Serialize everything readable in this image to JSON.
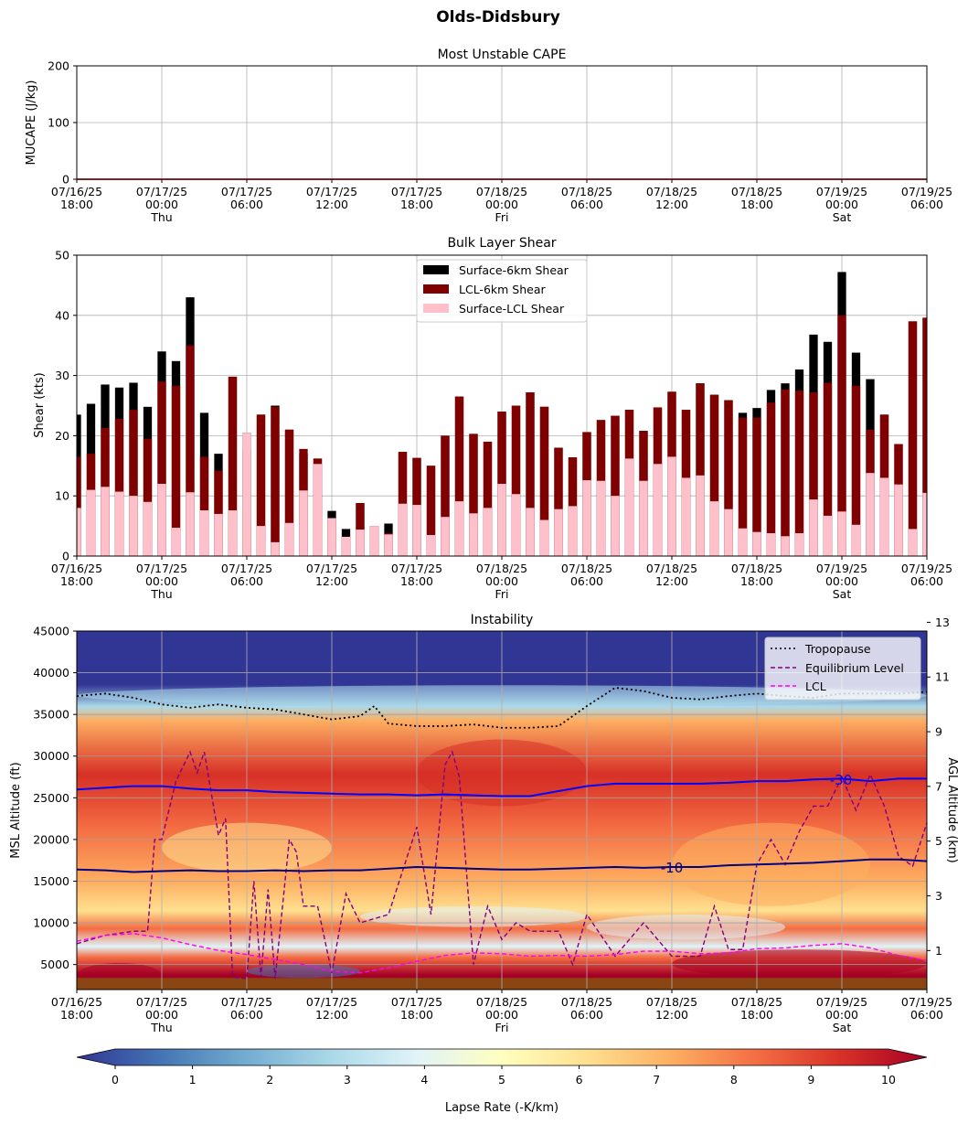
{
  "figure": {
    "title": "Olds-Didsbury"
  },
  "time_axis": {
    "ticks": [
      {
        "date": "07/16/25",
        "time": "18:00",
        "day": ""
      },
      {
        "date": "07/17/25",
        "time": "00:00",
        "day": "Thu"
      },
      {
        "date": "07/17/25",
        "time": "06:00",
        "day": ""
      },
      {
        "date": "07/17/25",
        "time": "12:00",
        "day": ""
      },
      {
        "date": "07/17/25",
        "time": "18:00",
        "day": ""
      },
      {
        "date": "07/18/25",
        "time": "00:00",
        "day": "Fri"
      },
      {
        "date": "07/18/25",
        "time": "06:00",
        "day": ""
      },
      {
        "date": "07/18/25",
        "time": "12:00",
        "day": ""
      },
      {
        "date": "07/18/25",
        "time": "18:00",
        "day": ""
      },
      {
        "date": "07/19/25",
        "time": "00:00",
        "day": "Sat"
      },
      {
        "date": "07/19/25",
        "time": "06:00",
        "day": ""
      }
    ]
  },
  "chart_data": [
    {
      "type": "line",
      "title": "Most Unstable CAPE",
      "xlabel": "",
      "ylabel": "MUCAPE (J/kg)",
      "xlim": [
        "07/16/25 18:00",
        "07/19/25 06:00"
      ],
      "ylim": [
        0,
        200
      ],
      "yticks": [
        0,
        100,
        200
      ],
      "grid": true,
      "series": [
        {
          "color": "#ee1111",
          "x": [
            "07/16/25 18:00",
            "07/17/25 00:00",
            "07/17/25 01:00",
            "07/17/25 02:00",
            "07/17/25 03:00",
            "07/17/25 04:00",
            "07/17/25 05:00",
            "07/17/25 06:00",
            "07/17/25 07:00",
            "07/17/25 08:00",
            "07/17/25 09:00",
            "07/17/25 10:00",
            "07/17/25 11:00",
            "07/17/25 12:00",
            "07/17/25 13:00",
            "07/17/25 14:00",
            "07/17/25 15:00",
            "07/17/25 16:00",
            "07/17/25 17:00",
            "07/17/25 18:00",
            "07/17/25 19:00",
            "07/17/25 20:00",
            "07/17/25 21:00",
            "07/17/25 22:00",
            "07/17/25 23:00",
            "07/18/25 00:00",
            "07/18/25 01:00",
            "07/18/25 02:00",
            "07/18/25 03:00",
            "07/18/25 04:00",
            "07/18/25 05:00",
            "07/18/25 06:00",
            "07/18/25 12:00",
            "07/18/25 18:00",
            "07/18/25 19:00",
            "07/18/25 20:00",
            "07/18/25 21:00",
            "07/18/25 22:00",
            "07/18/25 23:00",
            "07/19/25 00:00",
            "07/19/25 01:00",
            "07/19/25 02:00",
            "07/19/25 03:00",
            "07/19/25 04:00",
            "07/19/25 05:00",
            "07/19/25 06:00"
          ],
          "values": [
            0,
            0,
            0,
            0,
            0,
            0,
            0,
            0,
            0,
            0,
            0,
            0,
            0,
            0,
            0,
            0,
            0,
            0,
            0,
            0,
            0,
            0,
            0,
            0,
            0,
            0,
            0,
            0,
            0,
            0,
            0,
            0,
            0,
            0,
            0,
            0,
            0,
            0,
            0,
            0,
            0,
            0,
            0,
            0,
            0,
            0
          ]
        }
      ]
    },
    {
      "type": "bar",
      "title": "Bulk Layer Shear",
      "xlabel": "",
      "ylabel": "Shear (kts)",
      "xlim": [
        "07/16/25 18:00",
        "07/19/25 06:00"
      ],
      "ylim": [
        0,
        50
      ],
      "yticks": [
        0,
        10,
        20,
        30,
        40,
        50
      ],
      "grid": true,
      "legend_position": "top-center",
      "series": [
        {
          "name": "Surface-6km Shear",
          "color": "#000000"
        },
        {
          "name": "LCL-6km Shear",
          "color": "#800000"
        },
        {
          "name": "Surface-LCL Shear",
          "color": "#ffc0cb"
        }
      ],
      "hours_from_start": [
        0,
        1,
        2,
        3,
        4,
        5,
        6,
        7,
        8,
        9,
        10,
        11,
        12,
        13,
        14,
        15,
        16,
        17,
        18,
        19,
        20,
        21,
        22,
        23,
        24,
        25,
        26,
        27,
        28,
        29,
        30,
        31,
        32,
        33,
        34,
        35,
        36,
        37,
        38,
        39,
        40,
        41,
        42,
        43,
        44,
        45,
        46,
        47,
        48,
        49,
        50,
        51,
        52,
        53,
        54,
        55,
        56,
        57,
        58,
        59,
        60
      ],
      "surface_6km": [
        23.5,
        25.3,
        28.5,
        28,
        28.8,
        24.8,
        34,
        32.4,
        43,
        23.8,
        17,
        29.8,
        20.5,
        23.5,
        25,
        21,
        17,
        16.2,
        7.5,
        4.5,
        8.8,
        5,
        5.4,
        17.3,
        16.3,
        15,
        20,
        26.5,
        20.3,
        19,
        24,
        25,
        27.2,
        24.8,
        18,
        16.4,
        20.6,
        22.6,
        23.3,
        24.3,
        20.8,
        24.7,
        27.3,
        24.3,
        28.7,
        26.8,
        25.9,
        23.8,
        24.6,
        27.6,
        28.7,
        31,
        36.8,
        35.6,
        47.2,
        33.8,
        29.4,
        23.5,
        18.6,
        39,
        39.6
      ],
      "lcl_6km": [
        16.5,
        17,
        21.3,
        22.8,
        24.3,
        19.5,
        29,
        28.3,
        35,
        16.5,
        14.2,
        29.8,
        17.6,
        23.5,
        24.8,
        21,
        17.8,
        16.2,
        6.3,
        3.2,
        8.8,
        5,
        3.8,
        17.3,
        16.3,
        15,
        20,
        26.5,
        20.3,
        19,
        24,
        25,
        27.2,
        24.8,
        18,
        16.4,
        20.6,
        22.6,
        23.3,
        24.3,
        20.8,
        24.7,
        27.3,
        24.3,
        28.7,
        26.8,
        25.9,
        23,
        23,
        25.5,
        27.7,
        27.5,
        27.2,
        28.8,
        40,
        28.3,
        21,
        23.5,
        18.6,
        39,
        39.6
      ],
      "surface_lcl": [
        8,
        11,
        11.5,
        10.7,
        10,
        9,
        12,
        4.7,
        10.6,
        7.6,
        7,
        7.6,
        20.5,
        5,
        2.3,
        5.5,
        10.9,
        15.3,
        6.3,
        3.2,
        4.4,
        5,
        3.6,
        8.7,
        8.5,
        3.5,
        6.5,
        9.1,
        7.1,
        8,
        12,
        10.3,
        8,
        6,
        7.8,
        8.3,
        12.6,
        12.5,
        10,
        16.2,
        12.5,
        15.3,
        16.5,
        13,
        13.4,
        9.1,
        7.8,
        4.6,
        4,
        3.8,
        3.3,
        3.8,
        9.4,
        6.7,
        7.4,
        5.2,
        13.8,
        13,
        11.9,
        4.5,
        10.5
      ]
    },
    {
      "type": "heatmap",
      "title": "Instability",
      "xlabel": "",
      "ylabel": "MSL Altitude (ft)",
      "y2label": "AGL Altitude (km)",
      "xlim": [
        "07/16/25 18:00",
        "07/19/25 06:00"
      ],
      "ylim": [
        2000,
        45000
      ],
      "yticks": [
        5000,
        10000,
        15000,
        20000,
        25000,
        30000,
        35000,
        40000,
        45000
      ],
      "y2ticks": [
        1,
        3,
        5,
        7,
        9,
        11,
        13
      ],
      "grid": true,
      "legend_position": "top-right",
      "colorbar": {
        "label": "Lapse Rate (-K/km)",
        "range": [
          0,
          10
        ],
        "ticks": [
          0,
          1,
          2,
          3,
          4,
          5,
          6,
          7,
          8,
          9,
          10
        ],
        "colors": [
          "#313695",
          "#4575b4",
          "#74add1",
          "#abd9e9",
          "#e0f3f8",
          "#ffffbf",
          "#fee090",
          "#fdae61",
          "#f46d43",
          "#d73027",
          "#a50026"
        ]
      },
      "ground_color": "#8b4513",
      "series": [
        {
          "name": "Tropopause",
          "style": "dotted",
          "color": "#000000",
          "hours_from_start": [
            0,
            2,
            4,
            6,
            8,
            10,
            12,
            14,
            16,
            18,
            20,
            21,
            22,
            24,
            26,
            28,
            30,
            32,
            34,
            36,
            38,
            40,
            42,
            44,
            46,
            48,
            50,
            52,
            54,
            56,
            58,
            60
          ],
          "values": [
            37200,
            37500,
            37000,
            36200,
            35800,
            36200,
            35800,
            35600,
            35000,
            34400,
            34800,
            36000,
            33900,
            33600,
            33600,
            33800,
            33400,
            33400,
            33600,
            36000,
            38200,
            37800,
            37000,
            36800,
            37200,
            37500,
            37200,
            37000,
            37500,
            37500,
            37500,
            37700
          ]
        },
        {
          "name": "Equilibrium Level",
          "style": "dashed",
          "color": "#800080",
          "hours_from_start": [
            0,
            2,
            4,
            5,
            5.5,
            6,
            7,
            8,
            8.5,
            9,
            10,
            10.5,
            11,
            12,
            12.5,
            13,
            13.5,
            14,
            15,
            15.5,
            16,
            17,
            18,
            19,
            20,
            22,
            24,
            25,
            26,
            26.5,
            27,
            28,
            29,
            30,
            31,
            32,
            33,
            34,
            35,
            36,
            38,
            40,
            42,
            44,
            45,
            46,
            47,
            48,
            49,
            50,
            51,
            52,
            53,
            54,
            55,
            56,
            57,
            58,
            59,
            60
          ],
          "values": [
            7500,
            8500,
            9000,
            9000,
            20000,
            20000,
            27000,
            30500,
            28000,
            30500,
            20500,
            22500,
            3500,
            3300,
            15000,
            3500,
            14000,
            3300,
            20000,
            18500,
            12000,
            12000,
            4000,
            13500,
            10000,
            11000,
            21500,
            11000,
            29000,
            30500,
            27500,
            5000,
            12000,
            8000,
            10000,
            9000,
            9000,
            9000,
            5000,
            11000,
            6000,
            10000,
            6000,
            6000,
            12000,
            6800,
            6800,
            17000,
            20000,
            17000,
            21000,
            24000,
            24000,
            27500,
            23500,
            27800,
            24000,
            18000,
            16800,
            22000
          ]
        },
        {
          "name": "LCL",
          "style": "dashed",
          "color": "#ff00ff",
          "hours_from_start": [
            0,
            2,
            4,
            6,
            8,
            10,
            12,
            14,
            16,
            18,
            20,
            22,
            24,
            26,
            28,
            30,
            32,
            34,
            36,
            38,
            40,
            42,
            44,
            46,
            48,
            50,
            52,
            54,
            56,
            58,
            60
          ],
          "values": [
            7800,
            8500,
            8700,
            8200,
            7400,
            6700,
            6200,
            5600,
            5000,
            4200,
            4000,
            4600,
            5400,
            6100,
            6400,
            6300,
            6000,
            6100,
            6000,
            6200,
            6600,
            6600,
            6300,
            6400,
            6900,
            7000,
            7300,
            7500,
            7000,
            6100,
            5500
          ]
        },
        {
          "name": "-30",
          "style": "solid",
          "color": "#0000ff",
          "hours_from_start": [
            0,
            2,
            4,
            6,
            8,
            10,
            12,
            14,
            16,
            18,
            20,
            22,
            24,
            26,
            28,
            30,
            32,
            34,
            36,
            38,
            40,
            42,
            44,
            46,
            48,
            50,
            52,
            54,
            56,
            58,
            60
          ],
          "values": [
            26000,
            26200,
            26400,
            26400,
            26100,
            25900,
            25900,
            25700,
            25600,
            25500,
            25400,
            25400,
            25300,
            25400,
            25300,
            25200,
            25200,
            25800,
            26400,
            26700,
            26700,
            26700,
            26700,
            26800,
            27000,
            27000,
            27200,
            27300,
            27000,
            27300,
            27300
          ]
        },
        {
          "name": "-10",
          "style": "solid",
          "color": "#000080",
          "hours_from_start": [
            0,
            2,
            4,
            6,
            8,
            10,
            12,
            14,
            16,
            18,
            20,
            22,
            24,
            26,
            28,
            30,
            32,
            34,
            36,
            38,
            40,
            42,
            44,
            46,
            48,
            50,
            52,
            54,
            56,
            58,
            60
          ],
          "values": [
            16400,
            16300,
            16100,
            16200,
            16300,
            16200,
            16200,
            16300,
            16200,
            16300,
            16300,
            16500,
            16700,
            16600,
            16500,
            16400,
            16400,
            16500,
            16600,
            16700,
            16600,
            16700,
            16700,
            16900,
            17000,
            17100,
            17200,
            17400,
            17600,
            17600,
            17400
          ]
        }
      ]
    }
  ]
}
